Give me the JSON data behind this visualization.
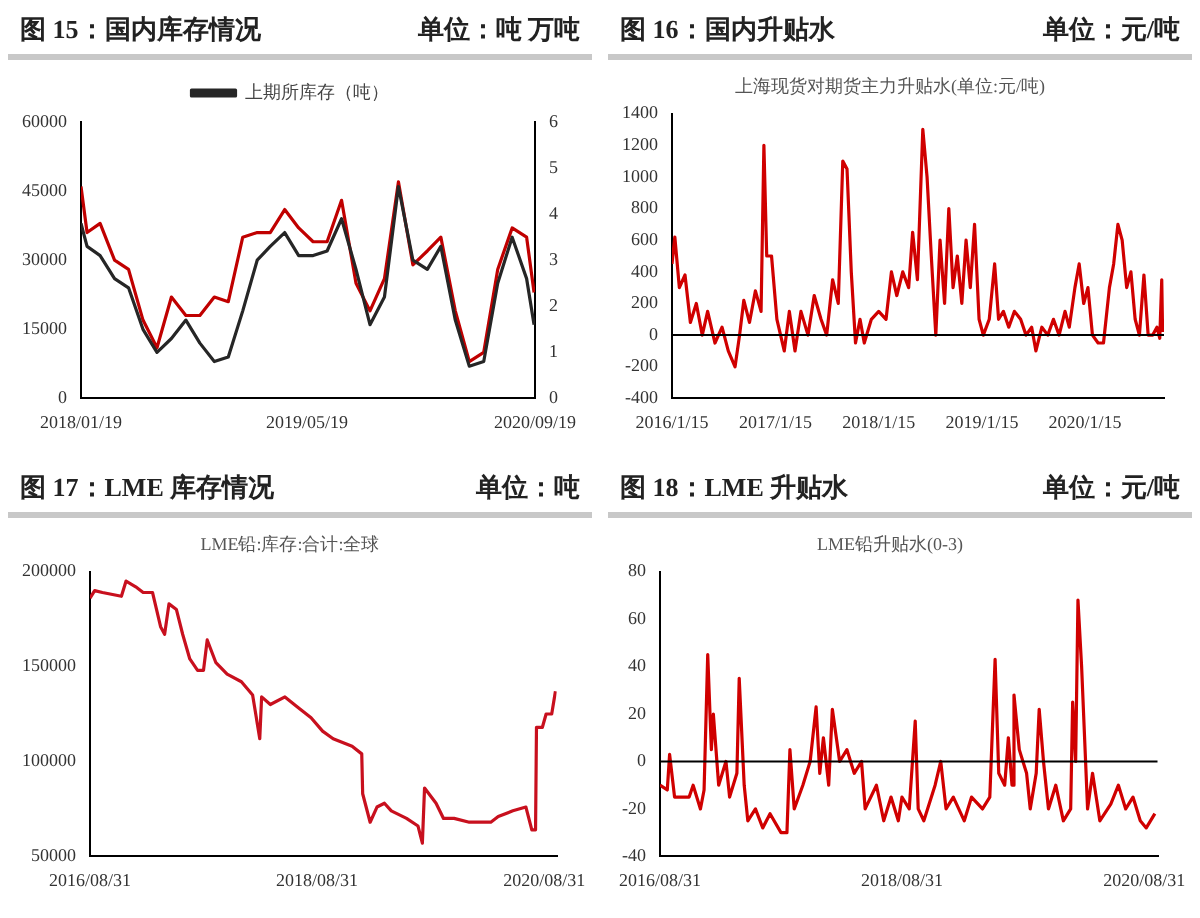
{
  "chart_data": [
    {
      "type": "line",
      "title": "图 15：国内库存情况",
      "annotations": [
        "单位：吨 万吨"
      ],
      "legend": "top",
      "grid": false,
      "xlim": [
        "2018-01-19",
        "2020-09-19"
      ],
      "xticks": [
        {
          "value": "2018-01-19",
          "label": "2018/01/19"
        },
        {
          "value": "2019-05-19",
          "label": "2019/05/19"
        },
        {
          "value": "2020-09-19",
          "label": "2020/09/19"
        }
      ],
      "ylim": [
        0,
        60000
      ],
      "yticks": [
        0,
        15000,
        30000,
        45000,
        60000
      ],
      "y2lim": [
        0,
        6
      ],
      "y2ticks": [
        0,
        1,
        2,
        3,
        4,
        5,
        6
      ],
      "x": [
        "2018-01-19",
        "2018-02-01",
        "2018-03-01",
        "2018-04-01",
        "2018-05-01",
        "2018-06-01",
        "2018-07-01",
        "2018-08-01",
        "2018-09-01",
        "2018-10-01",
        "2018-11-01",
        "2018-12-01",
        "2019-01-01",
        "2019-02-01",
        "2019-03-01",
        "2019-04-01",
        "2019-05-01",
        "2019-06-01",
        "2019-07-01",
        "2019-08-01",
        "2019-09-01",
        "2019-10-01",
        "2019-11-01",
        "2019-12-01",
        "2020-01-01",
        "2020-02-01",
        "2020-03-01",
        "2020-04-01",
        "2020-05-01",
        "2020-06-01",
        "2020-07-01",
        "2020-08-01",
        "2020-09-01",
        "2020-09-17"
      ],
      "series": [
        {
          "name": "上期所库存（吨）",
          "color": "#262626",
          "values": [
            38000,
            33000,
            31000,
            26000,
            24000,
            15000,
            10000,
            13000,
            17000,
            12000,
            8000,
            9000,
            19000,
            30000,
            33000,
            36000,
            31000,
            31000,
            32000,
            39000,
            28000,
            16000,
            22000,
            46000,
            30000,
            28000,
            33000,
            17000,
            7000,
            8000,
            25000,
            35000,
            26000,
            16000
          ]
        },
        {
          "color": "#c00000",
          "axis": "y2",
          "values": [
            4.6,
            3.6,
            3.8,
            3.0,
            2.8,
            1.7,
            1.1,
            2.2,
            1.8,
            1.8,
            2.2,
            2.1,
            3.5,
            3.6,
            3.6,
            4.1,
            3.7,
            3.4,
            3.4,
            4.3,
            2.5,
            1.9,
            2.6,
            4.7,
            2.9,
            3.2,
            3.5,
            1.9,
            0.8,
            1.0,
            2.8,
            3.7,
            3.5,
            2.3
          ]
        }
      ]
    },
    {
      "type": "line",
      "title": "图 16：国内升贴水",
      "annotations": [
        "单位：元/吨"
      ],
      "subtitle": "上海现货对期货主力升贴水(单位:元/吨)",
      "grid": false,
      "xlim": [
        "2016-01-15",
        "2020-10-20"
      ],
      "xticks": [
        {
          "value": "2016-01-15",
          "label": "2016/1/15"
        },
        {
          "value": "2017-01-15",
          "label": "2017/1/15"
        },
        {
          "value": "2018-01-15",
          "label": "2018/1/15"
        },
        {
          "value": "2019-01-15",
          "label": "2019/1/15"
        },
        {
          "value": "2020-01-15",
          "label": "2020/1/15"
        }
      ],
      "ylim": [
        -400,
        1400
      ],
      "yticks": [
        -400,
        -200,
        0,
        200,
        400,
        600,
        800,
        1000,
        1200,
        1400
      ],
      "ref_lines": [
        {
          "axis": "y",
          "value": 0,
          "color": "#000000"
        }
      ],
      "x": [
        "2016-01-15",
        "2016-01-25",
        "2016-02-10",
        "2016-03-01",
        "2016-03-20",
        "2016-04-10",
        "2016-05-01",
        "2016-05-20",
        "2016-06-15",
        "2016-07-10",
        "2016-08-01",
        "2016-08-25",
        "2016-09-10",
        "2016-09-25",
        "2016-10-15",
        "2016-11-05",
        "2016-11-25",
        "2016-12-05",
        "2016-12-15",
        "2017-01-01",
        "2017-01-20",
        "2017-02-15",
        "2017-03-05",
        "2017-03-25",
        "2017-04-15",
        "2017-05-10",
        "2017-06-01",
        "2017-06-25",
        "2017-07-15",
        "2017-08-05",
        "2017-08-25",
        "2017-09-10",
        "2017-09-25",
        "2017-10-10",
        "2017-10-25",
        "2017-11-10",
        "2017-11-25",
        "2017-12-20",
        "2018-01-15",
        "2018-02-10",
        "2018-03-01",
        "2018-03-20",
        "2018-04-10",
        "2018-05-01",
        "2018-05-15",
        "2018-06-01",
        "2018-06-20",
        "2018-07-05",
        "2018-07-20",
        "2018-08-05",
        "2018-08-20",
        "2018-09-05",
        "2018-09-20",
        "2018-10-05",
        "2018-10-20",
        "2018-11-05",
        "2018-11-20",
        "2018-12-05",
        "2018-12-20",
        "2019-01-05",
        "2019-01-20",
        "2019-02-10",
        "2019-03-01",
        "2019-03-15",
        "2019-04-01",
        "2019-04-20",
        "2019-05-10",
        "2019-06-01",
        "2019-06-20",
        "2019-07-10",
        "2019-07-25",
        "2019-08-15",
        "2019-09-05",
        "2019-09-25",
        "2019-10-15",
        "2019-11-05",
        "2019-11-20",
        "2019-12-10",
        "2019-12-25",
        "2020-01-10",
        "2020-01-25",
        "2020-02-10",
        "2020-03-01",
        "2020-03-20",
        "2020-04-10",
        "2020-04-25",
        "2020-05-10",
        "2020-05-25",
        "2020-06-10",
        "2020-06-25",
        "2020-07-10",
        "2020-07-25",
        "2020-08-10",
        "2020-08-25",
        "2020-09-10",
        "2020-09-25",
        "2020-10-05",
        "2020-10-12",
        "2020-10-15"
      ],
      "series": [
        {
          "color": "#d00000",
          "values": [
            450,
            620,
            300,
            380,
            80,
            200,
            0,
            150,
            -50,
            50,
            -100,
            -200,
            0,
            220,
            80,
            280,
            150,
            1200,
            500,
            500,
            100,
            -100,
            150,
            -100,
            150,
            0,
            250,
            100,
            0,
            350,
            200,
            1100,
            1050,
            400,
            -50,
            100,
            -50,
            100,
            150,
            100,
            400,
            250,
            400,
            300,
            650,
            350,
            1300,
            1000,
            500,
            0,
            600,
            200,
            800,
            300,
            500,
            200,
            600,
            300,
            700,
            100,
            0,
            100,
            450,
            100,
            150,
            50,
            150,
            100,
            0,
            50,
            -100,
            50,
            0,
            100,
            0,
            150,
            50,
            300,
            450,
            200,
            300,
            0,
            -50,
            -50,
            300,
            450,
            700,
            600,
            300,
            400,
            100,
            0,
            380,
            0,
            0,
            50,
            -20,
            350,
            20
          ]
        }
      ]
    },
    {
      "type": "line",
      "title": "图 17：LME 库存情况",
      "annotations": [
        "单位：吨"
      ],
      "subtitle": "LME铅:库存:合计:全球",
      "grid": false,
      "xlim": [
        "2016-08-31",
        "2020-10-10"
      ],
      "xticks": [
        {
          "value": "2016-08-31",
          "label": "2016/08/31"
        },
        {
          "value": "2018-08-31",
          "label": "2018/08/31"
        },
        {
          "value": "2020-08-31",
          "label": "2020/08/31"
        }
      ],
      "ylim": [
        50000,
        200000
      ],
      "yticks": [
        50000,
        100000,
        150000,
        200000
      ],
      "x": [
        "2016-08-31",
        "2016-09-15",
        "2016-10-10",
        "2016-12-10",
        "2016-12-25",
        "2017-01-25",
        "2017-02-18",
        "2017-03-20",
        "2017-04-15",
        "2017-04-28",
        "2017-05-12",
        "2017-06-05",
        "2017-06-25",
        "2017-07-18",
        "2017-08-12",
        "2017-08-31",
        "2017-09-12",
        "2017-10-10",
        "2017-11-15",
        "2017-12-31",
        "2018-02-05",
        "2018-02-28",
        "2018-03-06",
        "2018-04-03",
        "2018-05-20",
        "2018-06-27",
        "2018-08-12",
        "2018-09-18",
        "2018-10-22",
        "2018-12-22",
        "2019-01-22",
        "2019-01-25",
        "2019-02-18",
        "2019-03-12",
        "2019-04-05",
        "2019-04-27",
        "2019-06-15",
        "2019-07-22",
        "2019-08-05",
        "2019-08-12",
        "2019-09-18",
        "2019-10-12",
        "2019-11-15",
        "2020-01-03",
        "2020-03-12",
        "2020-04-05",
        "2020-05-22",
        "2020-07-03",
        "2020-07-22",
        "2020-08-03",
        "2020-08-06",
        "2020-08-25",
        "2020-09-06",
        "2020-09-24",
        "2020-10-06"
      ],
      "series": [
        {
          "color": "#c8101e",
          "values": [
            186000,
            190000,
            189000,
            187000,
            195000,
            192000,
            189000,
            189000,
            171000,
            167000,
            183000,
            180000,
            167000,
            154000,
            148000,
            148000,
            164000,
            152000,
            146000,
            142000,
            135000,
            112000,
            134000,
            130000,
            134000,
            129000,
            123000,
            116000,
            112000,
            108000,
            104000,
            83000,
            68000,
            76000,
            78000,
            74000,
            70000,
            66000,
            57000,
            86000,
            78000,
            70000,
            70000,
            68000,
            68000,
            71000,
            74000,
            76000,
            64000,
            64000,
            118000,
            118000,
            125000,
            125000,
            137000
          ]
        }
      ]
    },
    {
      "type": "line",
      "title": "图 18：LME 升贴水",
      "annotations": [
        "单位：元/吨"
      ],
      "subtitle": "LME铅升贴水(0-3)",
      "grid": false,
      "xlim": [
        "2016-08-31",
        "2020-10-10"
      ],
      "xticks": [
        {
          "value": "2016-08-31",
          "label": "2016/08/31"
        },
        {
          "value": "2018-08-31",
          "label": "2018/08/31"
        },
        {
          "value": "2020-08-31",
          "label": "2020/08/31"
        }
      ],
      "ylim": [
        -40,
        80
      ],
      "yticks": [
        -40,
        -20,
        0,
        20,
        40,
        60,
        80
      ],
      "ref_lines": [
        {
          "axis": "y",
          "value": 0,
          "color": "#000000"
        }
      ],
      "x": [
        "2016-08-31",
        "2016-09-22",
        "2016-09-29",
        "2016-10-14",
        "2016-11-27",
        "2016-12-09",
        "2016-12-31",
        "2017-01-11",
        "2017-01-22",
        "2017-02-02",
        "2017-02-08",
        "2017-02-24",
        "2017-03-18",
        "2017-03-29",
        "2017-04-20",
        "2017-04-27",
        "2017-05-12",
        "2017-05-23",
        "2017-06-15",
        "2017-07-07",
        "2017-07-29",
        "2017-08-31",
        "2017-09-18",
        "2017-09-27",
        "2017-10-10",
        "2017-11-05",
        "2017-11-27",
        "2017-12-15",
        "2017-12-26",
        "2018-01-06",
        "2018-01-22",
        "2018-02-02",
        "2018-02-24",
        "2018-03-18",
        "2018-04-09",
        "2018-05-01",
        "2018-05-12",
        "2018-06-15",
        "2018-07-07",
        "2018-07-29",
        "2018-08-20",
        "2018-08-31",
        "2018-09-22",
        "2018-10-10",
        "2018-10-19",
        "2018-11-05",
        "2018-12-09",
        "2018-12-26",
        "2019-01-11",
        "2019-02-02",
        "2019-03-07",
        "2019-03-29",
        "2019-05-01",
        "2019-05-23",
        "2019-06-08",
        "2019-06-19",
        "2019-07-07",
        "2019-07-18",
        "2019-07-29",
        "2019-08-04",
        "2019-08-20",
        "2019-09-11",
        "2019-09-22",
        "2019-10-10",
        "2019-10-19",
        "2019-11-01",
        "2019-11-16",
        "2019-12-08",
        "2019-12-31",
        "2020-01-22",
        "2020-01-28",
        "2020-02-06",
        "2020-02-13",
        "2020-02-24",
        "2020-03-13",
        "2020-03-28",
        "2020-04-19",
        "2020-05-22",
        "2020-06-14",
        "2020-07-06",
        "2020-07-28",
        "2020-08-19",
        "2020-09-06",
        "2020-10-02"
      ],
      "series": [
        {
          "color": "#d00000",
          "values": [
            -10,
            -12,
            3,
            -15,
            -15,
            -10,
            -20,
            -12,
            45,
            5,
            20,
            -10,
            0,
            -15,
            -5,
            35,
            -10,
            -25,
            -20,
            -28,
            -22,
            -30,
            -30,
            5,
            -20,
            -10,
            0,
            23,
            -5,
            10,
            -10,
            22,
            0,
            5,
            -5,
            0,
            -20,
            -10,
            -25,
            -15,
            -25,
            -15,
            -20,
            17,
            -20,
            -25,
            -10,
            0,
            -20,
            -15,
            -25,
            -15,
            -20,
            -15,
            43,
            -5,
            -10,
            10,
            -10,
            28,
            5,
            -5,
            -20,
            -5,
            22,
            0,
            -20,
            -10,
            -25,
            -20,
            25,
            0,
            68,
            40,
            -20,
            -5,
            -25,
            -18,
            -10,
            -20,
            -15,
            -25,
            -28,
            -22
          ]
        }
      ]
    }
  ]
}
